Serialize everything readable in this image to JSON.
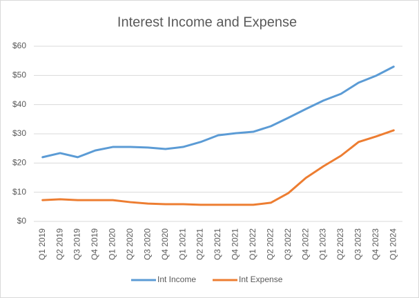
{
  "chart_data": {
    "type": "line",
    "title": "Interest Income and Expense",
    "categories": [
      "Q1 2019",
      "Q2 2019",
      "Q3 2019",
      "Q4 2019",
      "Q1 2020",
      "Q2 2020",
      "Q3 2020",
      "Q4 2020",
      "Q1 2021",
      "Q2 2021",
      "Q3 2021",
      "Q4 2021",
      "Q1 2022",
      "Q2 2022",
      "Q3 2022",
      "Q4 2022",
      "Q1 2023",
      "Q2 2023",
      "Q3 2023",
      "Q4 2023",
      "Q1 2024"
    ],
    "series": [
      {
        "name": "Int Income",
        "color": "#5b9bd5",
        "values": [
          22.0,
          23.4,
          22.0,
          24.3,
          25.5,
          25.5,
          25.3,
          24.8,
          25.5,
          27.2,
          29.5,
          30.2,
          30.7,
          32.6,
          35.5,
          38.5,
          41.4,
          43.7,
          47.5,
          49.9,
          53.0
        ]
      },
      {
        "name": "Int Expense",
        "color": "#ed7d31",
        "values": [
          7.3,
          7.6,
          7.3,
          7.3,
          7.3,
          6.6,
          6.1,
          5.9,
          5.9,
          5.7,
          5.7,
          5.7,
          5.7,
          6.4,
          9.7,
          14.9,
          18.9,
          22.5,
          27.2,
          29.1,
          31.2
        ]
      }
    ],
    "ylim": [
      0,
      60
    ],
    "yticks": [
      {
        "value": 0,
        "label": "$0"
      },
      {
        "value": 10,
        "label": "$10"
      },
      {
        "value": 20,
        "label": "$20"
      },
      {
        "value": 30,
        "label": "$30"
      },
      {
        "value": 40,
        "label": "$40"
      },
      {
        "value": 50,
        "label": "$50"
      },
      {
        "value": 60,
        "label": "$60"
      }
    ],
    "grid": true,
    "legend": "bottom"
  }
}
